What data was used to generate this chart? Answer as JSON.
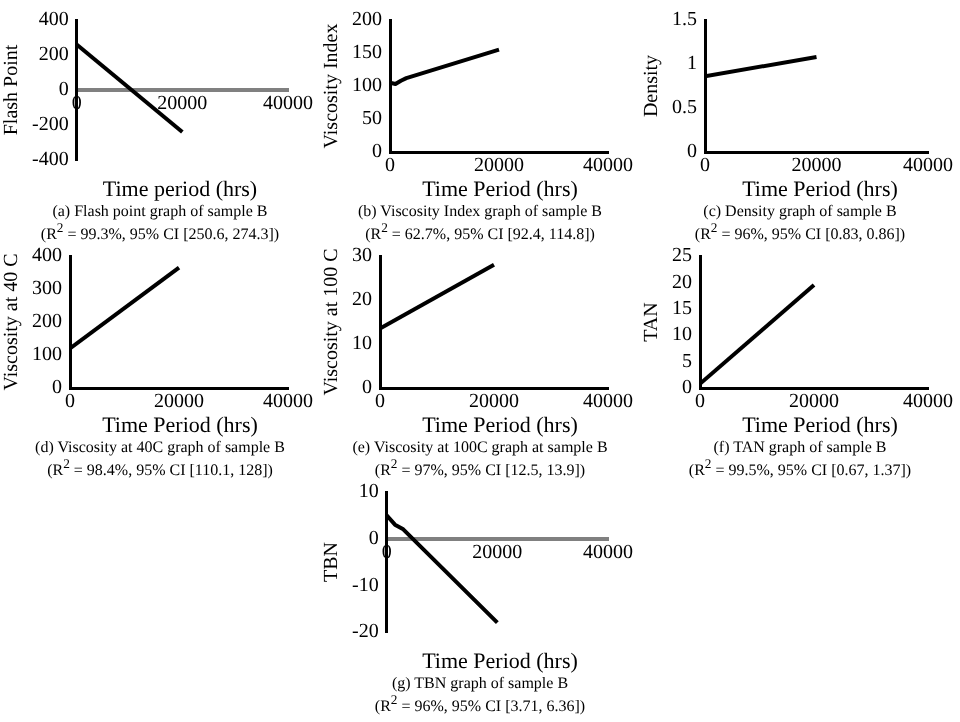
{
  "chart_data": [
    {
      "type": "line",
      "xlabel": "Time period (hrs)",
      "ylabel": "Flash Point",
      "x": [
        0,
        20000
      ],
      "values": [
        260,
        -240
      ],
      "color": "#000000",
      "xlim": [
        0,
        40000
      ],
      "xticks": [
        0,
        20000,
        40000
      ],
      "ylim": [
        -400,
        400
      ],
      "yticks": [
        -400,
        -200,
        0,
        200,
        400
      ],
      "marker": "none",
      "annotations": [
        "(a) Flash point graph of sample B",
        "(R$^{2}$ = 99.3%,  95% CI [250.6, 274.3])"
      ]
    },
    {
      "type": "line",
      "xlabel": "Time Period (hrs)",
      "ylabel": "Viscosity Index",
      "x": [
        0,
        1000,
        2000,
        3000,
        20000
      ],
      "values": [
        105,
        103,
        108,
        112,
        155
      ],
      "color": "#000000",
      "xlim": [
        0,
        40000
      ],
      "xticks": [
        0,
        20000,
        40000
      ],
      "ylim": [
        0,
        200
      ],
      "yticks": [
        0,
        50,
        100,
        150,
        200
      ],
      "marker": "none",
      "annotations": [
        "(b) Viscosity Index graph of sample B",
        "(R$^{2}$ = 62.7%, 95% CI [92.4, 114.8])"
      ]
    },
    {
      "type": "line",
      "xlabel": "Time Period (hrs)",
      "ylabel": "Density",
      "x": [
        0,
        20000
      ],
      "values": [
        0.86,
        1.08
      ],
      "color": "#000000",
      "xlim": [
        0,
        40000
      ],
      "xticks": [
        0,
        20000,
        40000
      ],
      "ylim": [
        0,
        1.5
      ],
      "yticks": [
        0,
        0.5,
        1,
        1.5
      ],
      "marker": "none",
      "annotations": [
        "(c) Density graph of sample B",
        "(R$^{2}$ = 96%, 95% CI [0.83, 0.86])"
      ]
    },
    {
      "type": "line",
      "xlabel": "Time Period (hrs)",
      "ylabel": "Viscosity at 40 C",
      "x": [
        0,
        20000
      ],
      "values": [
        120,
        365
      ],
      "color": "#000000",
      "xlim": [
        0,
        40000
      ],
      "xticks": [
        0,
        20000,
        40000
      ],
      "ylim": [
        0,
        400
      ],
      "yticks": [
        0,
        100,
        200,
        300,
        400
      ],
      "marker": "none",
      "annotations": [
        "(d) Viscosity at 40C graph of sample B",
        "(R$^{2}$ = 98.4%,  95% CI [110.1, 128])"
      ]
    },
    {
      "type": "line",
      "xlabel": "Time Period (hrs)",
      "ylabel": "Viscosity at 100 C",
      "x": [
        0,
        20000
      ],
      "values": [
        13.5,
        28
      ],
      "color": "#000000",
      "xlim": [
        0,
        40000
      ],
      "xticks": [
        0,
        20000,
        40000
      ],
      "ylim": [
        0,
        30
      ],
      "yticks": [
        0,
        10,
        20,
        30
      ],
      "marker": "none",
      "annotations": [
        "(e) Viscosity at 100C graph at sample B",
        "(R$^{2}$ = 97%, 95% CI [12.5, 13.9])"
      ]
    },
    {
      "type": "line",
      "xlabel": "Time Period (hrs)",
      "ylabel": "TAN",
      "x": [
        0,
        20000
      ],
      "values": [
        0.8,
        19.5
      ],
      "color": "#000000",
      "xlim": [
        0,
        40000
      ],
      "xticks": [
        0,
        20000,
        40000
      ],
      "ylim": [
        0,
        25
      ],
      "yticks": [
        0,
        5,
        10,
        15,
        20,
        25
      ],
      "marker": "none",
      "annotations": [
        "(f) TAN graph of sample B",
        "(R$^{2}$ = 99.5%,  95% CI [0.67, 1.37])"
      ]
    },
    {
      "type": "line",
      "xlabel": "Time Period (hrs)",
      "ylabel": "TBN",
      "x": [
        0,
        1500,
        3000,
        20000
      ],
      "values": [
        5,
        3,
        2,
        -18
      ],
      "color": "#000000",
      "xlim": [
        0,
        40000
      ],
      "xticks": [
        0,
        20000,
        40000
      ],
      "ylim": [
        -20,
        10
      ],
      "yticks": [
        -20,
        -10,
        0,
        10
      ],
      "marker": "none",
      "annotations": [
        "(g) TBN graph of sample B",
        "(R$^{2}$ = 96%,  95% CI [3.71, 6.36])"
      ]
    }
  ]
}
